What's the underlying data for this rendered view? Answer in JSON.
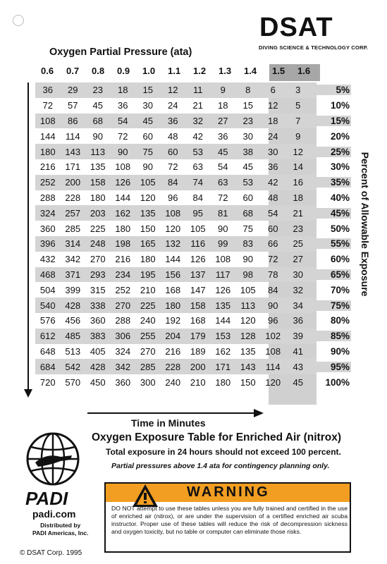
{
  "header": {
    "logo": "DSAT",
    "subtitle": "DIVING SCIENCE & TECHNOLOGY CORP."
  },
  "partial_pressure": {
    "title": "Oxygen Partial Pressure (ata)",
    "values": [
      "0.6",
      "0.7",
      "0.8",
      "0.9",
      "1.0",
      "1.1",
      "1.2",
      "1.3",
      "1.4",
      "1.5",
      "1.6"
    ]
  },
  "table": {
    "rows": [
      {
        "cells": [
          "36",
          "29",
          "23",
          "18",
          "15",
          "12",
          "11",
          "9",
          "8",
          "6",
          "3"
        ],
        "pct": "5%"
      },
      {
        "cells": [
          "72",
          "57",
          "45",
          "36",
          "30",
          "24",
          "21",
          "18",
          "15",
          "12",
          "5"
        ],
        "pct": "10%"
      },
      {
        "cells": [
          "108",
          "86",
          "68",
          "54",
          "45",
          "36",
          "32",
          "27",
          "23",
          "18",
          "7"
        ],
        "pct": "15%"
      },
      {
        "cells": [
          "144",
          "114",
          "90",
          "72",
          "60",
          "48",
          "42",
          "36",
          "30",
          "24",
          "9"
        ],
        "pct": "20%"
      },
      {
        "cells": [
          "180",
          "143",
          "113",
          "90",
          "75",
          "60",
          "53",
          "45",
          "38",
          "30",
          "12"
        ],
        "pct": "25%"
      },
      {
        "cells": [
          "216",
          "171",
          "135",
          "108",
          "90",
          "72",
          "63",
          "54",
          "45",
          "36",
          "14"
        ],
        "pct": "30%"
      },
      {
        "cells": [
          "252",
          "200",
          "158",
          "126",
          "105",
          "84",
          "74",
          "63",
          "53",
          "42",
          "16"
        ],
        "pct": "35%"
      },
      {
        "cells": [
          "288",
          "228",
          "180",
          "144",
          "120",
          "96",
          "84",
          "72",
          "60",
          "48",
          "18"
        ],
        "pct": "40%"
      },
      {
        "cells": [
          "324",
          "257",
          "203",
          "162",
          "135",
          "108",
          "95",
          "81",
          "68",
          "54",
          "21"
        ],
        "pct": "45%"
      },
      {
        "cells": [
          "360",
          "285",
          "225",
          "180",
          "150",
          "120",
          "105",
          "90",
          "75",
          "60",
          "23"
        ],
        "pct": "50%"
      },
      {
        "cells": [
          "396",
          "314",
          "248",
          "198",
          "165",
          "132",
          "116",
          "99",
          "83",
          "66",
          "25"
        ],
        "pct": "55%"
      },
      {
        "cells": [
          "432",
          "342",
          "270",
          "216",
          "180",
          "144",
          "126",
          "108",
          "90",
          "72",
          "27"
        ],
        "pct": "60%"
      },
      {
        "cells": [
          "468",
          "371",
          "293",
          "234",
          "195",
          "156",
          "137",
          "117",
          "98",
          "78",
          "30"
        ],
        "pct": "65%"
      },
      {
        "cells": [
          "504",
          "399",
          "315",
          "252",
          "210",
          "168",
          "147",
          "126",
          "105",
          "84",
          "32"
        ],
        "pct": "70%"
      },
      {
        "cells": [
          "540",
          "428",
          "338",
          "270",
          "225",
          "180",
          "158",
          "135",
          "113",
          "90",
          "34"
        ],
        "pct": "75%"
      },
      {
        "cells": [
          "576",
          "456",
          "360",
          "288",
          "240",
          "192",
          "168",
          "144",
          "120",
          "96",
          "36"
        ],
        "pct": "80%"
      },
      {
        "cells": [
          "612",
          "485",
          "383",
          "306",
          "255",
          "204",
          "179",
          "153",
          "128",
          "102",
          "39"
        ],
        "pct": "85%"
      },
      {
        "cells": [
          "648",
          "513",
          "405",
          "324",
          "270",
          "216",
          "189",
          "162",
          "135",
          "108",
          "41"
        ],
        "pct": "90%"
      },
      {
        "cells": [
          "684",
          "542",
          "428",
          "342",
          "285",
          "228",
          "200",
          "171",
          "143",
          "114",
          "43"
        ],
        "pct": "95%"
      },
      {
        "cells": [
          "720",
          "570",
          "450",
          "360",
          "300",
          "240",
          "210",
          "180",
          "150",
          "120",
          "45"
        ],
        "pct": "100%"
      }
    ],
    "right_label": "Percent of Allowable Exposure",
    "bottom_label": "Time in Minutes"
  },
  "footer": {
    "title": "Oxygen Exposure Table for Enriched Air (nitrox)",
    "note1": "Total exposure in 24 hours should not exceed 100 percent.",
    "note2": "Partial pressures above 1.4 ata for contingency planning only.",
    "padi_logo": "PADI",
    "padi_url": "padi.com",
    "distributed_1": "Distributed by",
    "distributed_2": "PADI Americas, Inc.",
    "copyright": "© DSAT Corp. 1995"
  },
  "warning": {
    "title": "WARNING",
    "text": "DO NOT attempt to use these tables unless you are fully trained and certified in the use of enriched air (nitrox), or are under the supervision of a certified enriched air scuba instructor. Proper use of these tables will reduce the risk of decompression sickness and oxygen toxicity, but no table or computer can eliminate those risks.",
    "color": "#f29e22"
  }
}
